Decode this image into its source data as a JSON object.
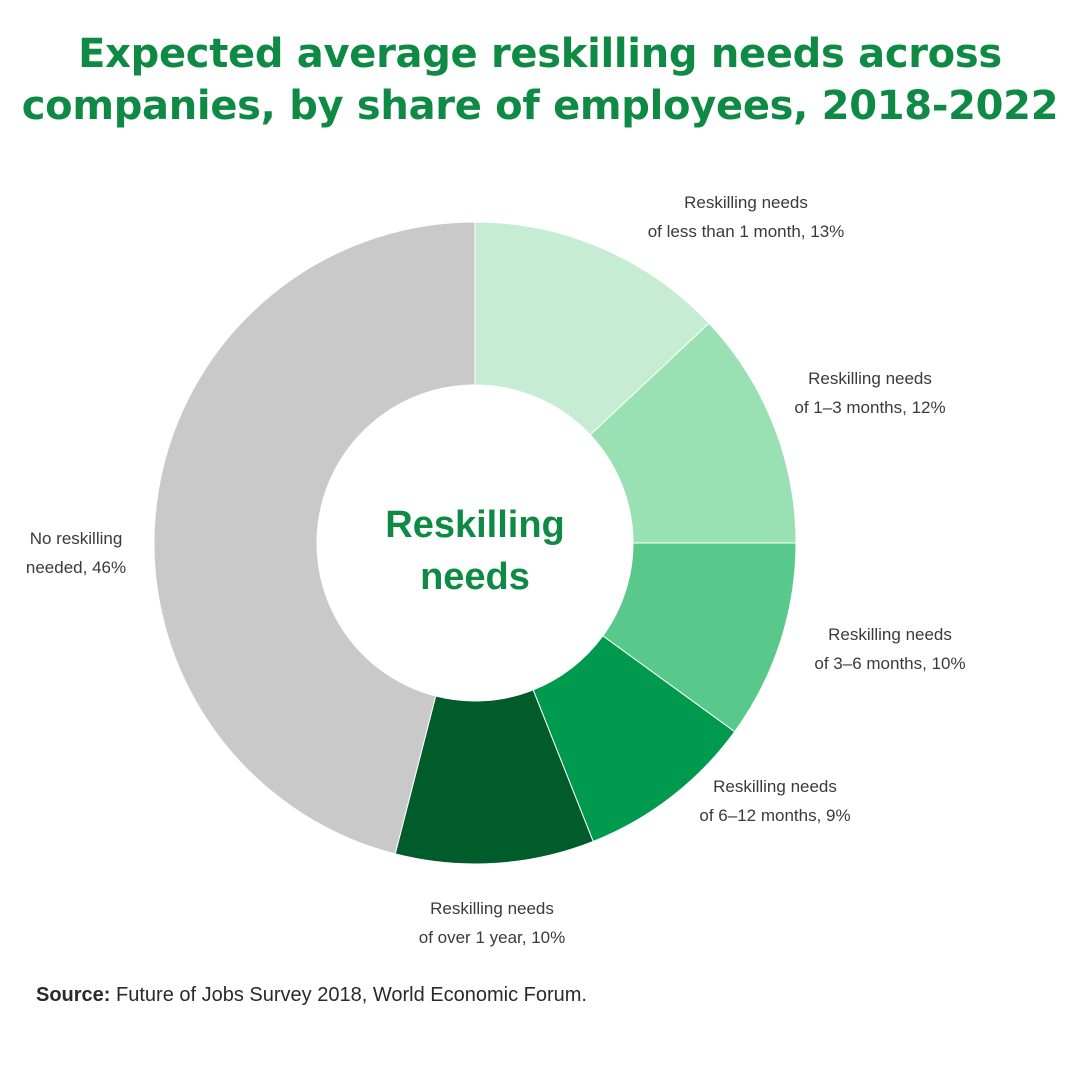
{
  "title": {
    "line1": "Expected average reskilling needs across",
    "line2": "companies, by share of employees, 2018-2022"
  },
  "colors": {
    "title": "#0f8a45",
    "center_text": "#0f8a45"
  },
  "chart_data": {
    "type": "pie",
    "variant": "donut",
    "title": "Expected average reskilling needs across companies, by share of employees, 2018-2022",
    "center_label": [
      "Reskilling",
      "needs"
    ],
    "unit": "%",
    "slices": [
      {
        "label": "Reskilling needs of less than 1 month",
        "label_lines": [
          "Reskilling needs",
          "of less than 1 month, 13%"
        ],
        "value": 13,
        "color": "#c6ecd4"
      },
      {
        "label": "Reskilling needs of 1–3 months",
        "label_lines": [
          "Reskilling needs",
          "of 1–3 months, 12%"
        ],
        "value": 12,
        "color": "#99e0b3"
      },
      {
        "label": "Reskilling needs of 3–6 months",
        "label_lines": [
          "Reskilling needs",
          "of 3–6 months, 10%"
        ],
        "value": 10,
        "color": "#58c98b"
      },
      {
        "label": "Reskilling needs of 6–12 months",
        "label_lines": [
          "Reskilling needs",
          "of 6–12 months, 9%"
        ],
        "value": 9,
        "color": "#009a4e"
      },
      {
        "label": "Reskilling needs of over 1 year",
        "label_lines": [
          "Reskilling needs",
          "of over 1 year, 10%"
        ],
        "value": 10,
        "color": "#005c2b"
      },
      {
        "label": "No reskilling needed",
        "label_lines": [
          "No reskilling",
          "needed, 46%"
        ],
        "value": 46,
        "color": "#c8c9c8"
      }
    ]
  },
  "source": {
    "label": "Source:",
    "text": " Future of Jobs Survey 2018, World Economic Forum."
  }
}
